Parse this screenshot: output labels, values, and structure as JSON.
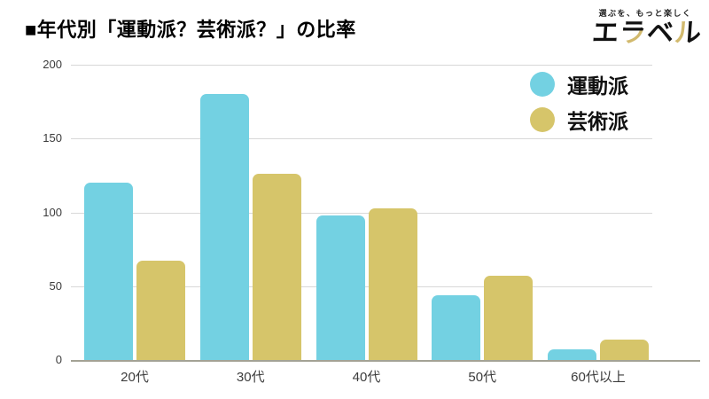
{
  "header": {
    "title": "■年代別「運動派？芸術派？」の比率"
  },
  "logo": {
    "tagline": "選ぶを、もっと楽しく",
    "brand": "エラベル",
    "brand_chars": [
      "エ",
      "ラ",
      "ベ",
      "ル"
    ],
    "black": "#111111",
    "gold": "#d2ba6e"
  },
  "colors": {
    "undouha": "#73d1e2",
    "geijutsuha": "#d6c56a",
    "gridline": "#d8d8d8",
    "axis_line": "#a3a295",
    "tick_text": "#3c3c3c"
  },
  "chart_data": {
    "type": "bar",
    "title": "年代別「運動派？芸術派？」の比率",
    "categories": [
      "20代",
      "30代",
      "40代",
      "50代",
      "60代以上"
    ],
    "series": [
      {
        "name": "運動派",
        "color": "#73d1e2",
        "values": [
          120,
          180,
          98,
          44,
          7
        ]
      },
      {
        "name": "芸術派",
        "color": "#d6c56a",
        "values": [
          67,
          126,
          103,
          57,
          14
        ]
      }
    ],
    "xlabel": "",
    "ylabel": "",
    "ylim": [
      0,
      200
    ],
    "yticks": [
      0,
      50,
      100,
      150,
      200
    ],
    "grid": true,
    "legend_position": "top-right"
  }
}
